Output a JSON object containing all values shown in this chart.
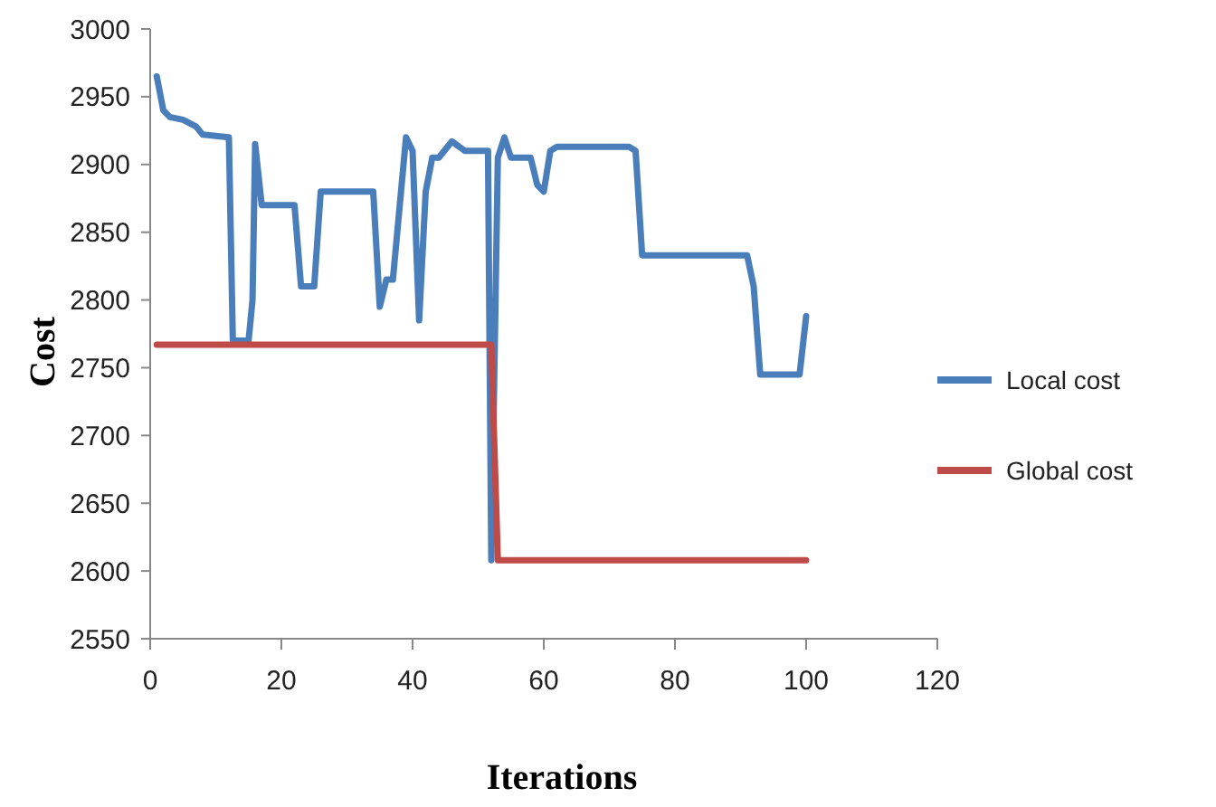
{
  "chart_data": {
    "type": "line",
    "xlabel": "Iterations",
    "ylabel": "Cost",
    "xlim": [
      0,
      120
    ],
    "xticks": [
      0,
      20,
      40,
      60,
      80,
      100,
      120
    ],
    "ylim": [
      2550,
      3000
    ],
    "yticks": [
      2550,
      2600,
      2650,
      2700,
      2750,
      2800,
      2850,
      2900,
      2950,
      3000
    ],
    "grid": false,
    "legend": "right",
    "marker": "none",
    "line_style": "solid",
    "series": [
      {
        "name": "Local cost",
        "color": "#4a7ebb",
        "x": [
          1,
          2,
          3,
          5,
          7,
          8,
          10,
          12,
          12.6,
          13,
          15,
          15.6,
          16,
          17,
          22,
          23,
          25,
          26,
          34,
          35,
          36,
          37,
          39,
          40,
          41,
          42,
          43,
          44,
          46,
          48,
          51,
          51.5,
          52,
          53,
          54,
          55,
          58,
          59,
          60,
          61,
          62,
          73,
          74,
          75,
          76,
          91,
          92,
          93,
          98,
          99,
          100
        ],
        "values": [
          2965,
          2940,
          2935,
          2933,
          2928,
          2922,
          2921,
          2920,
          2770,
          2770,
          2770,
          2800,
          2915,
          2870,
          2870,
          2810,
          2810,
          2880,
          2880,
          2795,
          2815,
          2815,
          2920,
          2910,
          2785,
          2880,
          2905,
          2905,
          2917,
          2910,
          2910,
          2910,
          2608,
          2905,
          2920,
          2905,
          2905,
          2885,
          2880,
          2910,
          2913,
          2913,
          2910,
          2833,
          2833,
          2833,
          2810,
          2745,
          2745,
          2745,
          2788
        ]
      },
      {
        "name": "Global cost",
        "color": "#be4b48",
        "x": [
          1,
          52,
          53,
          100
        ],
        "values": [
          2767,
          2767,
          2608,
          2608
        ]
      }
    ]
  }
}
